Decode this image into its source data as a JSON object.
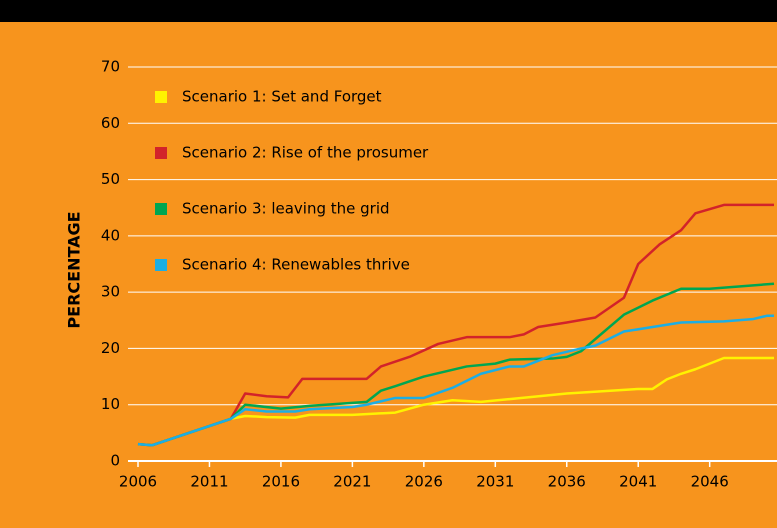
{
  "chart_data": {
    "type": "line",
    "ylabel": "PERCENTAGE",
    "xlim": [
      2006,
      2050.5
    ],
    "xticks": [
      2006,
      2011,
      2016,
      2021,
      2026,
      2031,
      2036,
      2041,
      2046
    ],
    "ylim": [
      0,
      70
    ],
    "yticks": [
      0,
      10,
      20,
      30,
      40,
      50,
      60,
      70
    ],
    "grid": true,
    "legend": "upper left",
    "series": [
      {
        "name": "Scenario 1: Set and Forget",
        "color": "#fff200",
        "x": [
          2006,
          2007,
          2012.5,
          2013.5,
          2015,
          2017,
          2018,
          2021,
          2024,
          2026,
          2028,
          2030,
          2032,
          2036,
          2041,
          2042,
          2043,
          2044,
          2045,
          2047,
          2050.5
        ],
        "values": [
          3,
          2.8,
          7.5,
          8,
          7.8,
          7.7,
          8.2,
          8.2,
          8.6,
          10,
          10.8,
          10.5,
          11,
          12,
          12.8,
          12.8,
          14.5,
          15.5,
          16.3,
          18.3,
          18.3
        ]
      },
      {
        "name": "Scenario 2: Rise of the prosumer",
        "color": "#d2232a",
        "x": [
          2006,
          2007,
          2012.5,
          2013.5,
          2015,
          2016.5,
          2017.5,
          2022,
          2023,
          2025,
          2027,
          2029,
          2032,
          2033,
          2034,
          2036,
          2038,
          2040,
          2041,
          2042.5,
          2044,
          2045,
          2047,
          2050.5
        ],
        "values": [
          3,
          2.8,
          7.5,
          12,
          11.5,
          11.3,
          14.6,
          14.6,
          16.8,
          18.5,
          20.8,
          22,
          22,
          22.5,
          23.8,
          24.6,
          25.5,
          29,
          35,
          38.5,
          41,
          44,
          45.5,
          45.5
        ]
      },
      {
        "name": "Scenario 3: leaving the grid",
        "color": "#00a651",
        "x": [
          2006,
          2007,
          2012.5,
          2013.5,
          2016,
          2018,
          2022,
          2023,
          2024,
          2026,
          2029,
          2031,
          2032,
          2035,
          2036,
          2037,
          2040,
          2042,
          2044,
          2046,
          2050.5
        ],
        "values": [
          3,
          2.8,
          7.5,
          10,
          9.3,
          9.8,
          10.5,
          12.5,
          13.3,
          15,
          16.8,
          17.3,
          18,
          18.2,
          18.5,
          19.5,
          26,
          28.5,
          30.6,
          30.6,
          31.5
        ]
      },
      {
        "name": "Scenario 4: Renewables thrive",
        "color": "#1caee4",
        "x": [
          2006,
          2007,
          2012.5,
          2013.5,
          2015,
          2017,
          2018,
          2021,
          2022,
          2024,
          2026,
          2028,
          2030,
          2032,
          2033,
          2035,
          2037,
          2038,
          2040,
          2042,
          2044,
          2047,
          2049,
          2050,
          2050.5
        ],
        "values": [
          3,
          2.8,
          7.5,
          9.2,
          8.8,
          8.8,
          9.2,
          9.6,
          10,
          11.2,
          11.2,
          13,
          15.5,
          16.8,
          16.8,
          18.8,
          20,
          20.5,
          23,
          23.8,
          24.6,
          24.8,
          25.2,
          25.8,
          25.8
        ]
      }
    ]
  }
}
